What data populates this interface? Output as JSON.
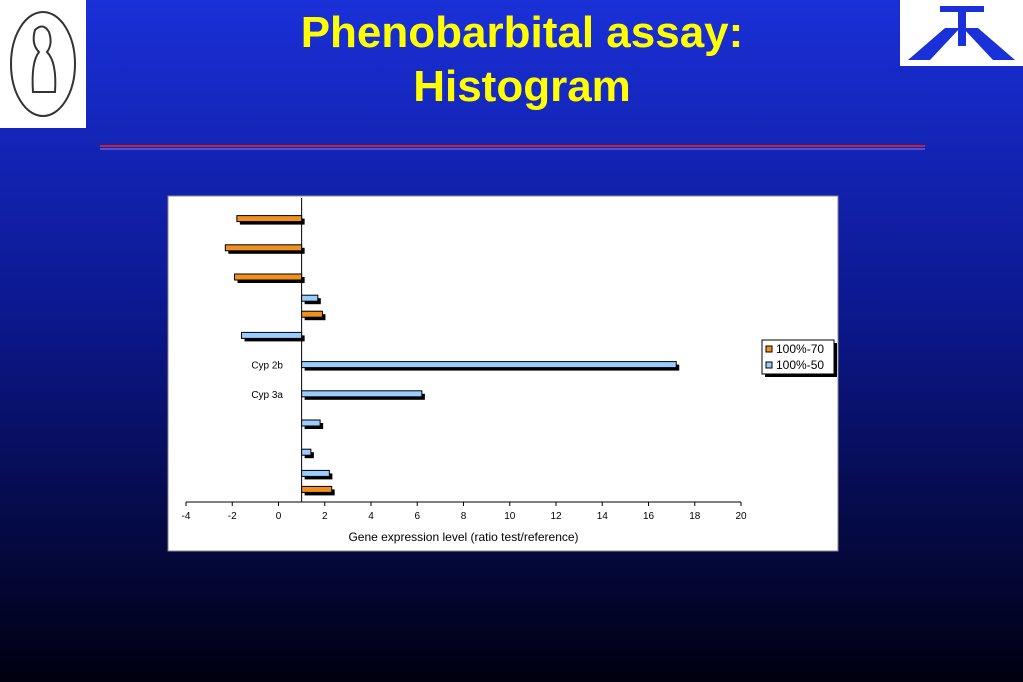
{
  "slide": {
    "title": "Phenobarbital assay: Histogram"
  },
  "chart_data": {
    "type": "bar",
    "orientation": "horizontal",
    "categories": [
      null,
      null,
      null,
      null,
      null,
      "Cyp 2b",
      "Cyp 3a",
      null,
      null,
      null
    ],
    "series": [
      {
        "name": "100%-70",
        "color": "#f0901e",
        "values": [
          -1.8,
          -2.3,
          -1.9,
          1.9,
          null,
          null,
          null,
          null,
          null,
          2.3
        ]
      },
      {
        "name": "100%-50",
        "color": "#99ccff",
        "values": [
          null,
          null,
          null,
          1.7,
          -1.6,
          17.2,
          6.2,
          1.8,
          1.4,
          2.2
        ]
      }
    ],
    "bar_base": 1,
    "xlabel": "Gene expression level (ratio test/reference)",
    "xlim": [
      -4,
      20
    ],
    "xticks": [
      -4,
      -2,
      0,
      2,
      4,
      6,
      8,
      10,
      12,
      14,
      16,
      18,
      20
    ],
    "legend": "right"
  }
}
